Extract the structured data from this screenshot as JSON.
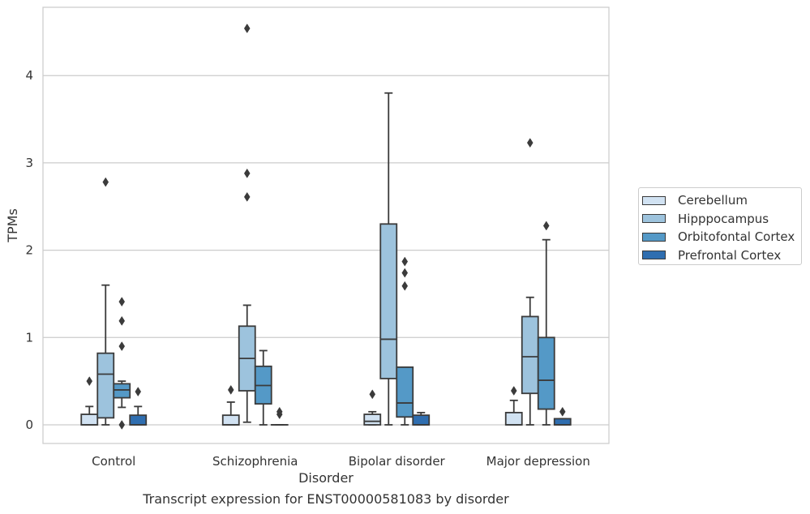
{
  "caption": "Transcript expression for ENST00000581083 by disorder",
  "chart_data": {
    "type": "box",
    "xlabel": "Disorder",
    "ylabel": "TPMs",
    "ylim": [
      -0.22,
      4.8
    ],
    "yticks": [
      0,
      1,
      2,
      3,
      4
    ],
    "grid": "horizontal",
    "legend_position": "right",
    "categories": [
      "Control",
      "Schizophrenia",
      "Bipolar disorder",
      "Major depression"
    ],
    "series": [
      {
        "name": "Cerebellum",
        "color": "#d1e2f2",
        "boxes": [
          {
            "whisker_low": 0,
            "q1": 0,
            "median": 0,
            "q3": 0.12,
            "whisker_high": 0.21,
            "outliers": [
              0.5
            ]
          },
          {
            "whisker_low": 0,
            "q1": 0,
            "median": 0,
            "q3": 0.11,
            "whisker_high": 0.26,
            "outliers": [
              0.4
            ]
          },
          {
            "whisker_low": 0,
            "q1": 0,
            "median": 0.04,
            "q3": 0.12,
            "whisker_high": 0.15,
            "outliers": [
              0.35
            ]
          },
          {
            "whisker_low": 0,
            "q1": 0,
            "median": 0,
            "q3": 0.14,
            "whisker_high": 0.28,
            "outliers": [
              0.39
            ]
          }
        ]
      },
      {
        "name": "Hipppocampus",
        "color": "#9dc3dd",
        "boxes": [
          {
            "whisker_low": 0,
            "q1": 0.08,
            "median": 0.58,
            "q3": 0.82,
            "whisker_high": 1.6,
            "outliers": [
              2.78
            ]
          },
          {
            "whisker_low": 0.03,
            "q1": 0.39,
            "median": 0.76,
            "q3": 1.13,
            "whisker_high": 1.37,
            "outliers": [
              2.61,
              2.88,
              4.54
            ]
          },
          {
            "whisker_low": 0,
            "q1": 0.53,
            "median": 0.98,
            "q3": 2.3,
            "whisker_high": 3.8,
            "outliers": []
          },
          {
            "whisker_low": 0,
            "q1": 0.36,
            "median": 0.78,
            "q3": 1.24,
            "whisker_high": 1.46,
            "outliers": [
              3.23
            ]
          }
        ]
      },
      {
        "name": "Orbitofontal Cortex",
        "color": "#5499c7",
        "boxes": [
          {
            "whisker_low": 0.2,
            "q1": 0.31,
            "median": 0.4,
            "q3": 0.47,
            "whisker_high": 0.5,
            "outliers": [
              0,
              0.9,
              1.19,
              1.41
            ]
          },
          {
            "whisker_low": 0,
            "q1": 0.24,
            "median": 0.45,
            "q3": 0.67,
            "whisker_high": 0.85,
            "outliers": []
          },
          {
            "whisker_low": 0,
            "q1": 0.09,
            "median": 0.25,
            "q3": 0.66,
            "whisker_high": 0.66,
            "outliers": [
              1.59,
              1.74,
              1.87
            ]
          },
          {
            "whisker_low": 0,
            "q1": 0.18,
            "median": 0.51,
            "q3": 1.0,
            "whisker_high": 2.12,
            "outliers": [
              2.28
            ]
          }
        ]
      },
      {
        "name": "Prefrontal Cortex",
        "color": "#2f6eb0",
        "boxes": [
          {
            "whisker_low": 0,
            "q1": 0,
            "median": 0,
            "q3": 0.11,
            "whisker_high": 0.21,
            "outliers": [
              0.38
            ]
          },
          {
            "whisker_low": 0,
            "q1": 0,
            "median": 0,
            "q3": 0,
            "whisker_high": 0,
            "outliers": [
              0.12,
              0.15
            ]
          },
          {
            "whisker_low": 0,
            "q1": 0,
            "median": 0,
            "q3": 0.11,
            "whisker_high": 0.14,
            "outliers": []
          },
          {
            "whisker_low": 0,
            "q1": 0,
            "median": 0,
            "q3": 0.07,
            "whisker_high": 0.07,
            "outliers": [
              0.15
            ]
          }
        ]
      }
    ]
  }
}
